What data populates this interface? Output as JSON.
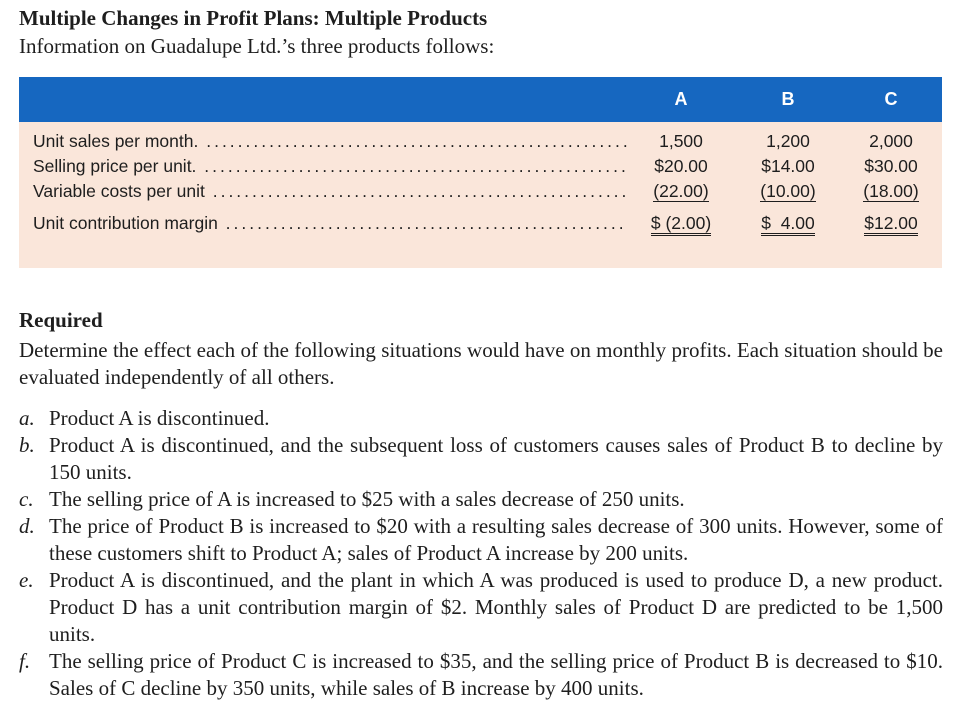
{
  "title": "Multiple Changes in Profit Plans: Multiple Products",
  "intro": "Information on Guadalupe Ltd.’s three products follows:",
  "table": {
    "headers": [
      "A",
      "B",
      "C"
    ],
    "rows": [
      {
        "label": "Unit sales per month.",
        "values": [
          "1,500",
          "1,200",
          "2,000"
        ]
      },
      {
        "label": "Selling price per unit.",
        "values": [
          "$20.00",
          "$14.00",
          "$30.00"
        ]
      },
      {
        "label": "Variable costs per unit",
        "values": [
          "(22.00)",
          "(10.00)",
          "(18.00)"
        ]
      },
      {
        "label": "Unit contribution margin",
        "values": [
          "$ (2.00)",
          "$  4.00",
          "$12.00"
        ]
      }
    ],
    "colors": {
      "header_bg": "#1667c0",
      "body_bg": "#fae6da"
    }
  },
  "required_heading": "Required",
  "required_text": "Determine the effect each of the following situations would have on monthly profits. Each situation should be evaluated independently of all others.",
  "items": [
    {
      "label": "a.",
      "text": "Product A is discontinued."
    },
    {
      "label": "b.",
      "text": "Product A is discontinued, and the subsequent loss of customers causes sales of Product B to decline by 150 units."
    },
    {
      "label": "c.",
      "text": "The selling price of A is increased to $25 with a sales decrease of 250 units."
    },
    {
      "label": "d.",
      "text": "The price of Product B is increased to $20 with a resulting sales decrease of 300 units. However, some of these customers shift to Product A; sales of Product A increase by 200 units."
    },
    {
      "label": "e.",
      "text": "Product A is discontinued, and the plant in which A was produced is used to produce D, a new product. Product D has a unit contribution margin of $2. Monthly sales of Product D are predicted to be 1,500 units."
    },
    {
      "label": "f.",
      "text": "The selling price of Product C is increased to $35, and the selling price of Product B is decreased to $10. Sales of C decline by 350 units, while sales of B increase by 400 units."
    }
  ]
}
